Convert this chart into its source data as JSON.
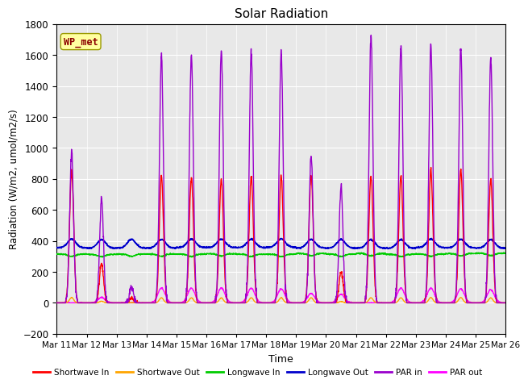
{
  "title": "Solar Radiation",
  "xlabel": "Time",
  "ylabel": "Radiation (W/m2, umol/m2/s)",
  "ylim": [
    -200,
    1800
  ],
  "yticks": [
    -200,
    0,
    200,
    400,
    600,
    800,
    1000,
    1200,
    1400,
    1600,
    1800
  ],
  "num_days": 15,
  "bg_color": "#e8e8e8",
  "annotation_text": "WP_met",
  "annotation_color": "#8b0000",
  "annotation_bg": "#ffffa0",
  "series": {
    "shortwave_in": {
      "color": "#ff0000",
      "label": "Shortwave In"
    },
    "shortwave_out": {
      "color": "#ffa500",
      "label": "Shortwave Out"
    },
    "longwave_in": {
      "color": "#00cc00",
      "label": "Longwave In"
    },
    "longwave_out": {
      "color": "#0000cc",
      "label": "Longwave Out"
    },
    "par_in": {
      "color": "#9900cc",
      "label": "PAR in"
    },
    "par_out": {
      "color": "#ff00ff",
      "label": "PAR out"
    }
  },
  "xtick_labels": [
    "Mar 11",
    "Mar 12",
    "Mar 13",
    "Mar 14",
    "Mar 15",
    "Mar 16",
    "Mar 17",
    "Mar 18",
    "Mar 19",
    "Mar 20",
    "Mar 21",
    "Mar 22",
    "Mar 23",
    "Mar 24",
    "Mar 25",
    "Mar 26"
  ],
  "sw_in_peaks": [
    850,
    250,
    30,
    820,
    810,
    800,
    820,
    820,
    820,
    200,
    820,
    820,
    860,
    860,
    800
  ],
  "par_in_peaks": [
    970,
    670,
    100,
    1600,
    1610,
    1630,
    1620,
    1620,
    950,
    750,
    1720,
    1660,
    1660,
    1640,
    1580
  ],
  "par_out_peaks": [
    0,
    35,
    0,
    95,
    95,
    95,
    95,
    90,
    60,
    55,
    0,
    95,
    95,
    90,
    85
  ]
}
